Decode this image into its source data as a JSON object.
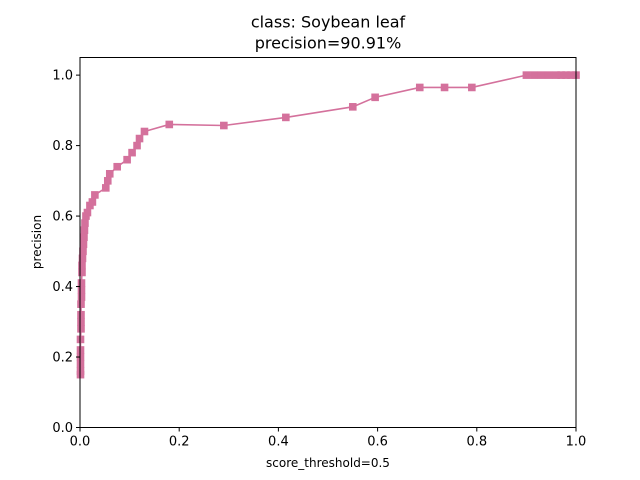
{
  "chart_data": {
    "type": "line",
    "title_line1": "class: Soybean leaf",
    "title_line2": "precision=90.91%",
    "xlabel": "score_threshold=0.5",
    "ylabel": "precision",
    "xlim": [
      0,
      1
    ],
    "ylim": [
      0,
      1.05
    ],
    "x_ticks": [
      0.0,
      0.2,
      0.4,
      0.6,
      0.8,
      1.0
    ],
    "x_tick_labels": [
      "0.0",
      "0.2",
      "0.4",
      "0.6",
      "0.8",
      "1.0"
    ],
    "y_ticks": [
      0.0,
      0.2,
      0.4,
      0.6,
      0.8,
      1.0
    ],
    "y_tick_labels": [
      "0.0",
      "0.2",
      "0.4",
      "0.6",
      "0.8",
      "1.0"
    ],
    "grid": false,
    "series": [
      {
        "color": "#d4719c",
        "marker": "square",
        "points": [
          [
            0.001,
            0.15
          ],
          [
            0.001,
            0.16
          ],
          [
            0.001,
            0.18
          ],
          [
            0.001,
            0.2
          ],
          [
            0.001,
            0.22
          ],
          [
            0.001,
            0.25
          ],
          [
            0.002,
            0.28
          ],
          [
            0.002,
            0.3
          ],
          [
            0.002,
            0.32
          ],
          [
            0.002,
            0.35
          ],
          [
            0.003,
            0.37
          ],
          [
            0.003,
            0.39
          ],
          [
            0.003,
            0.41
          ],
          [
            0.004,
            0.44
          ],
          [
            0.004,
            0.46
          ],
          [
            0.005,
            0.48
          ],
          [
            0.006,
            0.5
          ],
          [
            0.007,
            0.52
          ],
          [
            0.008,
            0.54
          ],
          [
            0.009,
            0.56
          ],
          [
            0.01,
            0.58
          ],
          [
            0.012,
            0.6
          ],
          [
            0.015,
            0.61
          ],
          [
            0.02,
            0.63
          ],
          [
            0.025,
            0.64
          ],
          [
            0.03,
            0.66
          ],
          [
            0.052,
            0.68
          ],
          [
            0.056,
            0.7
          ],
          [
            0.06,
            0.72
          ],
          [
            0.075,
            0.74
          ],
          [
            0.095,
            0.76
          ],
          [
            0.105,
            0.78
          ],
          [
            0.115,
            0.8
          ],
          [
            0.12,
            0.82
          ],
          [
            0.13,
            0.84
          ],
          [
            0.18,
            0.86
          ],
          [
            0.29,
            0.857
          ],
          [
            0.415,
            0.88
          ],
          [
            0.55,
            0.91
          ],
          [
            0.595,
            0.937
          ],
          [
            0.685,
            0.965
          ],
          [
            0.735,
            0.965
          ],
          [
            0.79,
            0.965
          ],
          [
            0.9,
            1.0
          ],
          [
            0.915,
            1.0
          ],
          [
            0.93,
            1.0
          ],
          [
            0.945,
            1.0
          ],
          [
            0.96,
            1.0
          ],
          [
            0.97,
            1.0
          ],
          [
            0.98,
            1.0
          ],
          [
            0.99,
            1.0
          ],
          [
            1.0,
            1.0
          ]
        ]
      }
    ]
  }
}
